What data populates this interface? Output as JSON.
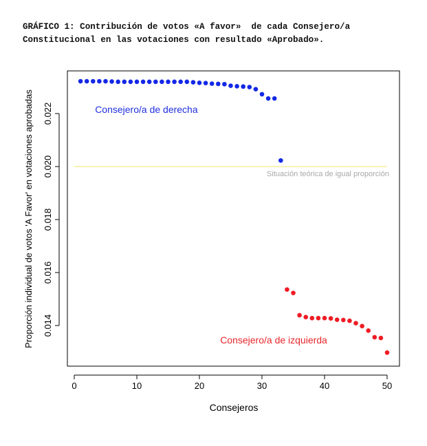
{
  "caption": {
    "line1": "GRÁFICO 1: Contribución de votos «A favor»  de cada Consejero/a",
    "line2": "Constitucional en las votaciones con resultado «Aprobado»."
  },
  "chart_data": {
    "type": "scatter",
    "xlabel": "Consejeros",
    "ylabel": "Proporción individual de votos 'A Favor' en votaciones aprobadas",
    "xlim": [
      0,
      50
    ],
    "ylim": [
      0.0129,
      0.0233
    ],
    "x_ticks": [
      {
        "value": 0,
        "label": "0"
      },
      {
        "value": 10,
        "label": "10"
      },
      {
        "value": 20,
        "label": "20"
      },
      {
        "value": 30,
        "label": "30"
      },
      {
        "value": 40,
        "label": "40"
      },
      {
        "value": 50,
        "label": "50"
      }
    ],
    "y_ticks": [
      {
        "value": 0.014,
        "label": "0.014"
      },
      {
        "value": 0.016,
        "label": "0.016"
      },
      {
        "value": 0.018,
        "label": "0.018"
      },
      {
        "value": 0.02,
        "label": "0.020"
      },
      {
        "value": 0.022,
        "label": "0.022"
      }
    ],
    "reference_line": {
      "value": 0.02,
      "label": "Situación teórica de igual proporción",
      "color": "#f5ef9a"
    },
    "annotations": [
      {
        "text": "Consejero/a de derecha",
        "color": "#1f2fe0",
        "x": 2,
        "y": 0.02215
      },
      {
        "text": "Consejero/a de izquierda",
        "color": "#e8262a",
        "x": 22,
        "y": 0.01346
      }
    ],
    "series": [
      {
        "color": "#1428e6",
        "points": [
          [
            1,
            0.02322
          ],
          [
            2,
            0.02322
          ],
          [
            3,
            0.02322
          ],
          [
            4,
            0.02322
          ],
          [
            5,
            0.02322
          ],
          [
            6,
            0.02321
          ],
          [
            7,
            0.0232
          ],
          [
            8,
            0.0232
          ],
          [
            9,
            0.0232
          ],
          [
            10,
            0.0232
          ],
          [
            11,
            0.0232
          ],
          [
            12,
            0.0232
          ],
          [
            13,
            0.0232
          ],
          [
            14,
            0.0232
          ],
          [
            15,
            0.0232
          ],
          [
            16,
            0.0232
          ],
          [
            17,
            0.0232
          ],
          [
            18,
            0.0232
          ],
          [
            19,
            0.02318
          ],
          [
            20,
            0.02316
          ],
          [
            21,
            0.02315
          ],
          [
            22,
            0.02313
          ],
          [
            23,
            0.02312
          ],
          [
            24,
            0.02311
          ],
          [
            25,
            0.02305
          ],
          [
            26,
            0.02303
          ],
          [
            27,
            0.02302
          ],
          [
            28,
            0.023
          ],
          [
            29,
            0.02292
          ],
          [
            30,
            0.02273
          ],
          [
            31,
            0.02257
          ],
          [
            32,
            0.02257
          ],
          [
            33,
            0.02023
          ]
        ]
      },
      {
        "color": "#ee1c24",
        "points": [
          [
            34,
            0.01536
          ],
          [
            35,
            0.01523
          ],
          [
            36,
            0.01439
          ],
          [
            37,
            0.01432
          ],
          [
            38,
            0.01428
          ],
          [
            39,
            0.01428
          ],
          [
            40,
            0.01428
          ],
          [
            41,
            0.01427
          ],
          [
            42,
            0.01422
          ],
          [
            43,
            0.01421
          ],
          [
            44,
            0.01418
          ],
          [
            45,
            0.01409
          ],
          [
            46,
            0.01398
          ],
          [
            47,
            0.01381
          ],
          [
            48,
            0.01356
          ],
          [
            49,
            0.01353
          ],
          [
            50,
            0.01298
          ]
        ]
      }
    ]
  }
}
